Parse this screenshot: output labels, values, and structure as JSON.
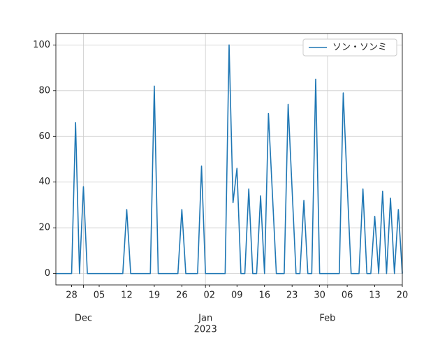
{
  "chart_data": {
    "type": "line",
    "x": [
      "2022-11-24",
      "2022-11-25",
      "2022-11-26",
      "2022-11-27",
      "2022-11-28",
      "2022-11-29",
      "2022-11-30",
      "2022-12-01",
      "2022-12-02",
      "2022-12-03",
      "2022-12-04",
      "2022-12-05",
      "2022-12-06",
      "2022-12-07",
      "2022-12-08",
      "2022-12-09",
      "2022-12-10",
      "2022-12-11",
      "2022-12-12",
      "2022-12-13",
      "2022-12-14",
      "2022-12-15",
      "2022-12-16",
      "2022-12-17",
      "2022-12-18",
      "2022-12-19",
      "2022-12-20",
      "2022-12-21",
      "2022-12-22",
      "2022-12-23",
      "2022-12-24",
      "2022-12-25",
      "2022-12-26",
      "2022-12-27",
      "2022-12-28",
      "2022-12-29",
      "2022-12-30",
      "2022-12-31",
      "2023-01-01",
      "2023-01-02",
      "2023-01-03",
      "2023-01-04",
      "2023-01-05",
      "2023-01-06",
      "2023-01-07",
      "2023-01-08",
      "2023-01-09",
      "2023-01-10",
      "2023-01-11",
      "2023-01-12",
      "2023-01-13",
      "2023-01-14",
      "2023-01-15",
      "2023-01-16",
      "2023-01-17",
      "2023-01-18",
      "2023-01-19",
      "2023-01-20",
      "2023-01-21",
      "2023-01-22",
      "2023-01-23",
      "2023-01-24",
      "2023-01-25",
      "2023-01-26",
      "2023-01-27",
      "2023-01-28",
      "2023-01-29",
      "2023-01-30",
      "2023-01-31",
      "2023-02-01",
      "2023-02-02",
      "2023-02-03",
      "2023-02-04",
      "2023-02-05",
      "2023-02-06",
      "2023-02-07",
      "2023-02-08",
      "2023-02-09",
      "2023-02-10",
      "2023-02-11",
      "2023-02-12",
      "2023-02-13",
      "2023-02-14",
      "2023-02-15",
      "2023-02-16",
      "2023-02-17",
      "2023-02-18",
      "2023-02-19",
      "2023-02-20"
    ],
    "series": [
      {
        "name": "ソン・ソンミ",
        "color": "#1f77b4",
        "values": [
          0,
          0,
          0,
          0,
          0,
          66,
          0,
          38,
          0,
          0,
          0,
          0,
          0,
          0,
          0,
          0,
          0,
          0,
          28,
          0,
          0,
          0,
          0,
          0,
          0,
          82,
          0,
          0,
          0,
          0,
          0,
          0,
          28,
          0,
          0,
          0,
          0,
          47,
          0,
          0,
          0,
          0,
          0,
          0,
          100,
          31,
          46,
          0,
          0,
          37,
          0,
          0,
          34,
          0,
          70,
          35,
          0,
          0,
          0,
          74,
          37,
          0,
          0,
          32,
          0,
          0,
          85,
          0,
          0,
          0,
          0,
          0,
          0,
          79,
          39,
          0,
          0,
          0,
          37,
          0,
          0,
          25,
          0,
          36,
          0,
          33,
          0,
          28,
          0
        ]
      }
    ],
    "xlim": [
      "2022-11-24",
      "2023-02-20"
    ],
    "xticks": [
      {
        "value": "2022-11-28",
        "label": "28"
      },
      {
        "value": "2022-12-05",
        "label": "05"
      },
      {
        "value": "2022-12-12",
        "label": "12"
      },
      {
        "value": "2022-12-19",
        "label": "19"
      },
      {
        "value": "2022-12-26",
        "label": "26"
      },
      {
        "value": "2023-01-02",
        "label": "02"
      },
      {
        "value": "2023-01-09",
        "label": "09"
      },
      {
        "value": "2023-01-16",
        "label": "16"
      },
      {
        "value": "2023-01-23",
        "label": "23"
      },
      {
        "value": "2023-01-30",
        "label": "30"
      },
      {
        "value": "2023-02-06",
        "label": "06"
      },
      {
        "value": "2023-02-13",
        "label": "13"
      },
      {
        "value": "2023-02-20",
        "label": "20"
      }
    ],
    "month_ticks": [
      {
        "value": "2022-12-01",
        "label": "Dec"
      },
      {
        "value": "2023-01-01",
        "label": "Jan",
        "year": "2023"
      },
      {
        "value": "2023-02-01",
        "label": "Feb"
      }
    ],
    "ylim": [
      -5,
      105
    ],
    "yticks": [
      0,
      20,
      40,
      60,
      80,
      100
    ],
    "grid": true,
    "legend": "upper right"
  }
}
